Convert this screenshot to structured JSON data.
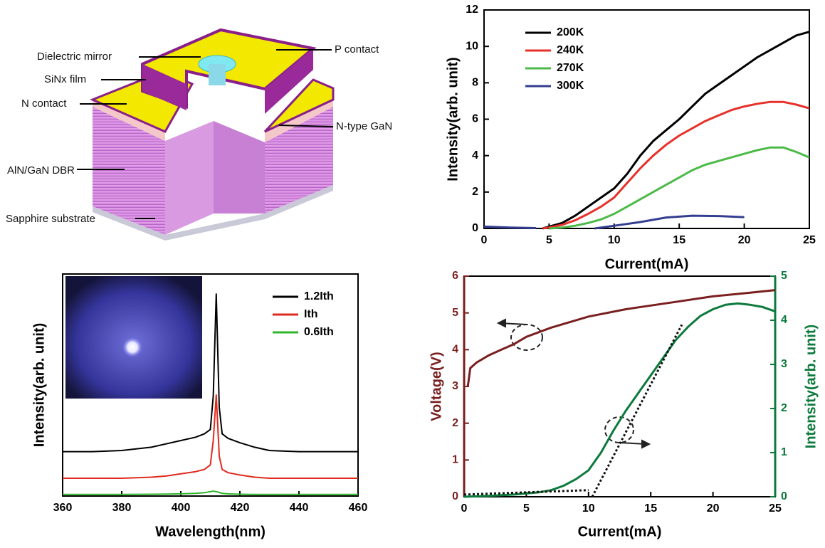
{
  "diagram": {
    "labels": [
      "Dielectric mirror",
      "P contact",
      "SiNx film",
      "N contact",
      "N-type GaN",
      "AlN/GaN DBR",
      "Sapphire substrate"
    ]
  },
  "chart_data": [
    {
      "type": "line",
      "xlabel": "Current(mA)",
      "ylabel": "Intensity(arb. unit)",
      "xlim": [
        0,
        25
      ],
      "xticks": [
        0,
        5,
        10,
        15,
        20,
        25
      ],
      "ylim": [
        0,
        12
      ],
      "yticks": [
        0,
        2,
        4,
        6,
        8,
        10,
        12
      ],
      "legend": "upper left",
      "series": [
        {
          "name": "200K",
          "color": "#000000",
          "x": [
            4.5,
            5,
            6,
            7,
            8,
            9,
            10,
            11,
            12,
            13,
            14,
            15,
            16,
            17,
            18,
            19,
            20,
            21,
            22,
            23,
            24,
            25
          ],
          "values": [
            0,
            0.1,
            0.3,
            0.7,
            1.2,
            1.7,
            2.2,
            3.0,
            4.0,
            4.8,
            5.4,
            6.0,
            6.7,
            7.4,
            7.9,
            8.4,
            8.9,
            9.4,
            9.8,
            10.2,
            10.6,
            10.8
          ]
        },
        {
          "name": "240K",
          "color": "#e8302a",
          "x": [
            4.5,
            5,
            6,
            7,
            8,
            9,
            10,
            11,
            12,
            13,
            14,
            15,
            16,
            17,
            18,
            19,
            20,
            21,
            22,
            23,
            24,
            25
          ],
          "values": [
            0,
            0.05,
            0.2,
            0.45,
            0.8,
            1.2,
            1.7,
            2.5,
            3.3,
            4.0,
            4.6,
            5.1,
            5.5,
            5.9,
            6.2,
            6.5,
            6.7,
            6.85,
            6.95,
            6.95,
            6.8,
            6.6
          ]
        },
        {
          "name": "270K",
          "color": "#4cba48",
          "x": [
            5,
            6,
            7,
            8,
            9,
            10,
            11,
            12,
            13,
            14,
            15,
            16,
            17,
            18,
            19,
            20,
            21,
            22,
            23,
            24,
            25
          ],
          "values": [
            0,
            0.05,
            0.15,
            0.3,
            0.5,
            0.8,
            1.2,
            1.6,
            2.0,
            2.4,
            2.8,
            3.2,
            3.5,
            3.7,
            3.9,
            4.1,
            4.3,
            4.45,
            4.45,
            4.2,
            3.9
          ]
        },
        {
          "name": "300K",
          "color": "#343e90",
          "x": [
            0,
            2,
            4,
            6,
            8.5,
            10,
            12,
            14,
            16,
            18,
            20
          ],
          "values": [
            0.1,
            0.05,
            0.02,
            null,
            0,
            0.15,
            0.35,
            0.6,
            0.7,
            0.68,
            0.62
          ]
        }
      ]
    },
    {
      "type": "line",
      "xlabel": "Wavelength(nm)",
      "ylabel": "Intensity(arb. unit)",
      "xlim": [
        360,
        460
      ],
      "xticks": [
        360,
        380,
        400,
        420,
        440,
        460
      ],
      "ylim": [
        0,
        100
      ],
      "legend": "upper right",
      "series": [
        {
          "name": "1.2Ith",
          "color": "#000000",
          "x": [
            360,
            370,
            380,
            390,
            395,
            400,
            405,
            408,
            410,
            411,
            412,
            413,
            414,
            416,
            420,
            425,
            430,
            440,
            450,
            460
          ],
          "values": [
            20,
            20,
            20.5,
            22,
            23.5,
            25,
            26.5,
            28,
            30,
            45,
            91,
            40,
            28,
            26,
            24,
            22,
            20.5,
            20,
            20,
            20
          ]
        },
        {
          "name": "Ith",
          "color": "#e02a1e",
          "x": [
            360,
            370,
            380,
            390,
            395,
            400,
            405,
            408,
            410,
            411,
            412,
            413,
            414,
            416,
            420,
            425,
            430,
            440,
            450,
            460
          ],
          "values": [
            8,
            8,
            8,
            8.5,
            9,
            10,
            11,
            12,
            14,
            25,
            45.5,
            18,
            12,
            10.5,
            9.5,
            8.5,
            8,
            8,
            8,
            8
          ]
        },
        {
          "name": "0.6Ith",
          "color": "#2fb52a",
          "x": [
            360,
            370,
            380,
            390,
            395,
            400,
            405,
            408,
            410,
            411,
            412,
            413,
            414,
            416,
            420,
            425,
            430,
            440,
            450,
            460
          ],
          "values": [
            0.7,
            0.7,
            0.7,
            0.8,
            0.9,
            1.0,
            1.2,
            1.5,
            2.0,
            2.2,
            2.0,
            1.6,
            1.2,
            1.0,
            0.8,
            0.7,
            0.7,
            0.7,
            0.7,
            0.7
          ]
        }
      ]
    },
    {
      "type": "line",
      "xlabel": "Current(mA)",
      "ylabel": "Voltage(V)",
      "y2label": "Intensity(arb. unit)",
      "y_axis_color": "#7a1f1f",
      "y2_axis_color": "#0c7a3c",
      "xlim": [
        0,
        25
      ],
      "xticks": [
        0,
        5,
        10,
        15,
        20,
        25
      ],
      "ylim": [
        0,
        6
      ],
      "yticks": [
        0,
        1,
        2,
        3,
        4,
        5,
        6
      ],
      "y2lim": [
        0,
        5
      ],
      "y2ticks": [
        0,
        1,
        2,
        3,
        4,
        5
      ],
      "series": [
        {
          "color": "#7a1f1f",
          "axis": "y",
          "x": [
            0.3,
            0.5,
            1,
            2,
            3,
            4,
            5,
            7,
            10,
            13,
            15,
            17,
            20,
            23,
            25
          ],
          "values": [
            3.0,
            3.5,
            3.65,
            3.85,
            4.0,
            4.15,
            4.35,
            4.6,
            4.9,
            5.1,
            5.2,
            5.3,
            5.45,
            5.55,
            5.62
          ]
        },
        {
          "color": "#0c7a3c",
          "axis": "y2",
          "x": [
            0,
            2,
            4,
            6,
            7,
            8,
            9,
            10,
            11,
            12,
            13,
            14,
            15,
            16,
            17,
            18,
            19,
            20,
            21,
            22,
            23,
            24,
            25
          ],
          "values": [
            0,
            0.02,
            0.05,
            0.1,
            0.15,
            0.25,
            0.4,
            0.6,
            1.0,
            1.5,
            1.95,
            2.35,
            2.75,
            3.15,
            3.55,
            3.85,
            4.1,
            4.25,
            4.35,
            4.38,
            4.35,
            4.3,
            4.2
          ]
        },
        {
          "color": "#111111",
          "axis": "y2",
          "style": "dotted",
          "x": [
            10.3,
            17.5
          ],
          "values": [
            0,
            3.9
          ]
        },
        {
          "color": "#111111",
          "axis": "y2",
          "style": "dotted",
          "x": [
            0,
            10
          ],
          "values": [
            0.05,
            0.15
          ]
        }
      ]
    }
  ]
}
